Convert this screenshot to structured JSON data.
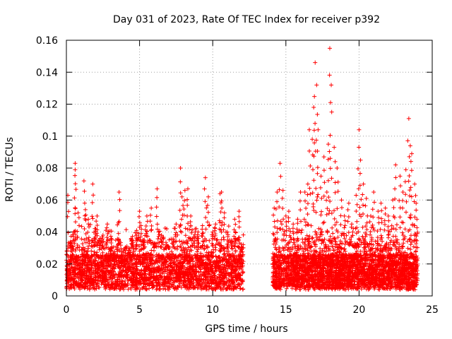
{
  "chart_data": {
    "type": "scatter",
    "title": "Day 031 of 2023, Rate Of TEC Index for receiver p392",
    "xlabel": "GPS time / hours",
    "ylabel": "ROTI / TECUs",
    "xlim": [
      0,
      25
    ],
    "ylim": [
      0,
      0.16
    ],
    "x_ticks": [
      0,
      5,
      10,
      15,
      20,
      25
    ],
    "x_tick_labels": [
      "0",
      "5",
      "10",
      "15",
      "20",
      "25"
    ],
    "y_ticks": [
      0,
      0.02,
      0.04,
      0.06,
      0.08,
      0.1,
      0.12,
      0.14,
      0.16
    ],
    "y_tick_labels": [
      "0",
      "0.02",
      "0.04",
      "0.06",
      "0.08",
      "0.1",
      "0.12",
      "0.14",
      "0.16"
    ],
    "grid": true,
    "marker": "+",
    "marker_color": "#ff0000",
    "series": [
      {
        "name": "ROTI",
        "x": [
          0.1,
          0.3,
          0.5,
          0.6,
          0.6,
          0.8,
          1.2,
          1.3,
          1.5,
          1.8,
          2.0,
          2.1,
          2.3,
          2.5,
          2.8,
          3.0,
          3.3,
          3.6,
          3.8,
          4.0,
          4.3,
          4.5,
          4.8,
          5.0,
          5.1,
          5.3,
          5.5,
          5.8,
          6.0,
          6.2,
          6.3,
          6.5,
          6.8,
          7.0,
          7.3,
          7.5,
          7.8,
          7.9,
          8.1,
          8.3,
          8.5,
          8.8,
          9.0,
          9.3,
          9.5,
          9.7,
          10.0,
          10.2,
          10.5,
          10.6,
          10.8,
          11.0,
          11.3,
          11.5,
          11.8,
          12.0,
          14.2,
          14.4,
          14.6,
          14.8,
          15.0,
          15.2,
          15.5,
          15.8,
          16.0,
          16.3,
          16.5,
          16.6,
          16.8,
          16.9,
          17.0,
          17.1,
          17.2,
          17.4,
          17.6,
          17.8,
          17.9,
          18.0,
          18.1,
          18.3,
          18.5,
          18.8,
          19.0,
          19.3,
          19.5,
          19.8,
          20.0,
          20.1,
          20.3,
          20.5,
          20.8,
          21.0,
          21.3,
          21.5,
          21.8,
          22.0,
          22.3,
          22.5,
          22.8,
          23.0,
          23.2,
          23.4,
          23.5,
          23.6,
          23.8,
          23.9
        ],
        "y": [
          0.063,
          0.034,
          0.04,
          0.083,
          0.079,
          0.052,
          0.072,
          0.054,
          0.048,
          0.07,
          0.042,
          0.05,
          0.036,
          0.038,
          0.045,
          0.028,
          0.02,
          0.065,
          0.02,
          0.02,
          0.025,
          0.035,
          0.041,
          0.053,
          0.044,
          0.035,
          0.05,
          0.055,
          0.033,
          0.067,
          0.04,
          0.038,
          0.03,
          0.03,
          0.035,
          0.045,
          0.08,
          0.062,
          0.066,
          0.067,
          0.05,
          0.042,
          0.04,
          0.044,
          0.074,
          0.062,
          0.04,
          0.045,
          0.064,
          0.065,
          0.052,
          0.04,
          0.035,
          0.048,
          0.053,
          0.03,
          0.055,
          0.065,
          0.083,
          0.066,
          0.05,
          0.053,
          0.045,
          0.048,
          0.065,
          0.065,
          0.07,
          0.104,
          0.098,
          0.118,
          0.146,
          0.132,
          0.104,
          0.075,
          0.087,
          0.065,
          0.095,
          0.155,
          0.132,
          0.093,
          0.08,
          0.06,
          0.05,
          0.058,
          0.045,
          0.063,
          0.104,
          0.085,
          0.07,
          0.061,
          0.05,
          0.065,
          0.053,
          0.058,
          0.055,
          0.05,
          0.06,
          0.082,
          0.075,
          0.065,
          0.079,
          0.111,
          0.094,
          0.089,
          0.07,
          0.058
        ]
      }
    ],
    "note": "Dense noise band approx 0.005-0.03 from x=0-12 and x=14-24"
  }
}
